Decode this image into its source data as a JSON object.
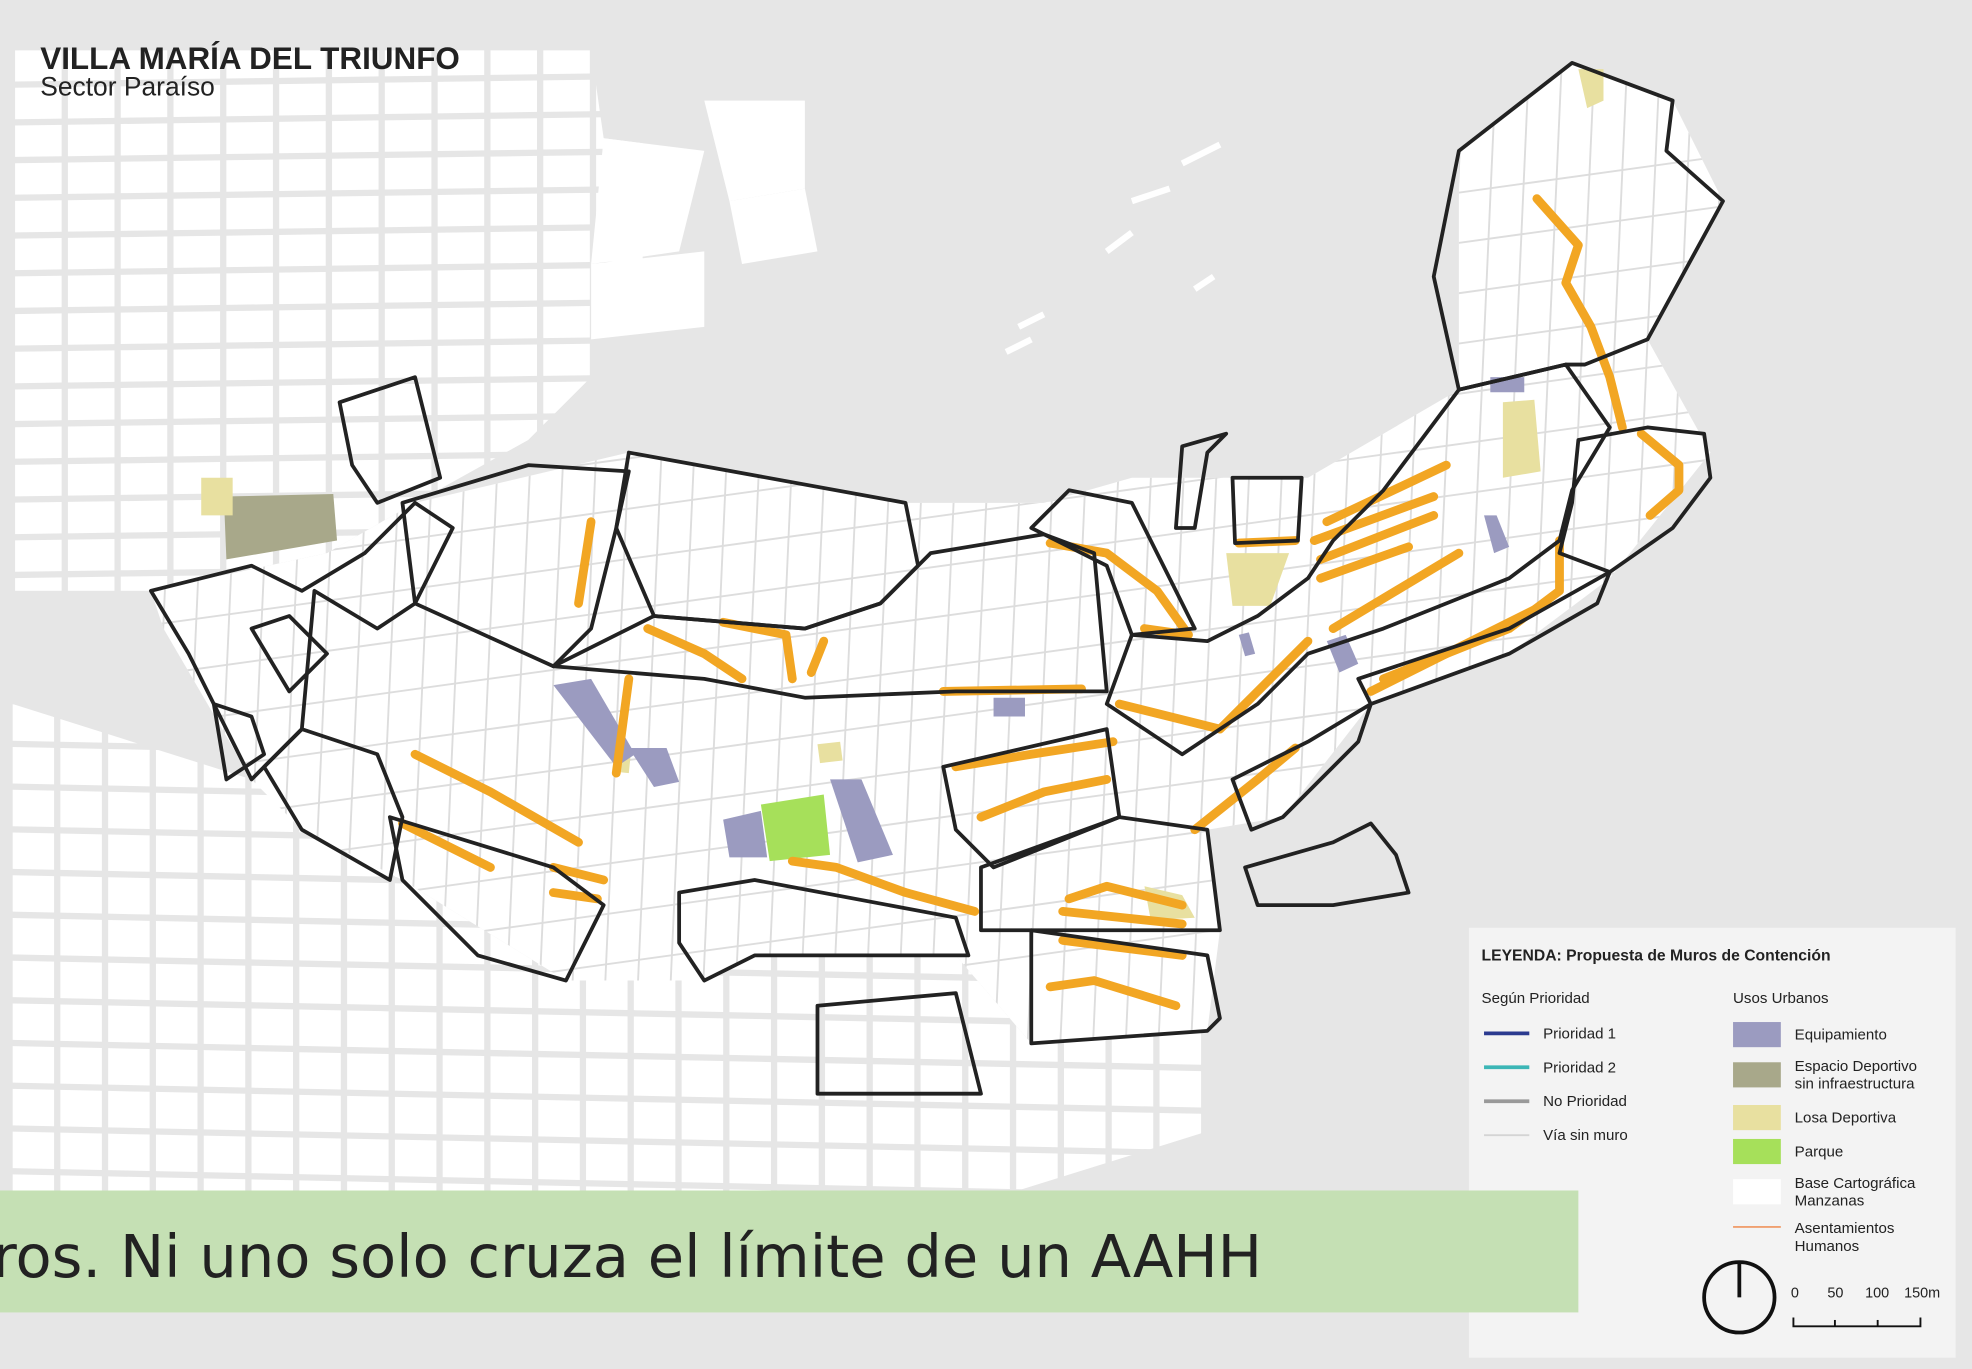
{
  "title": "VILLA MARÍA DEL TRIUNFO",
  "subtitle": "Sector Paraíso",
  "legend": {
    "title": "LEYENDA: Propuesta de Muros de Contención",
    "priority": {
      "heading": "Según Prioridad",
      "items": [
        "Prioridad 1",
        "Prioridad 2",
        "No Prioridad",
        "Vía sin muro"
      ]
    },
    "uses": {
      "heading": "Usos Urbanos",
      "items": [
        [
          "Equipamiento"
        ],
        [
          "Espacio Deportivo",
          "sin infraestructura"
        ],
        [
          "Losa Deportiva"
        ],
        [
          "Parque"
        ],
        [
          "Base Cartográfica",
          "Manzanas"
        ],
        [
          "Asentamientos",
          "Humanos"
        ]
      ]
    },
    "scale": [
      "0",
      "50",
      "100",
      "150m"
    ]
  },
  "caption": "ros. Ni uno solo cruza el límite de un AAHH"
}
